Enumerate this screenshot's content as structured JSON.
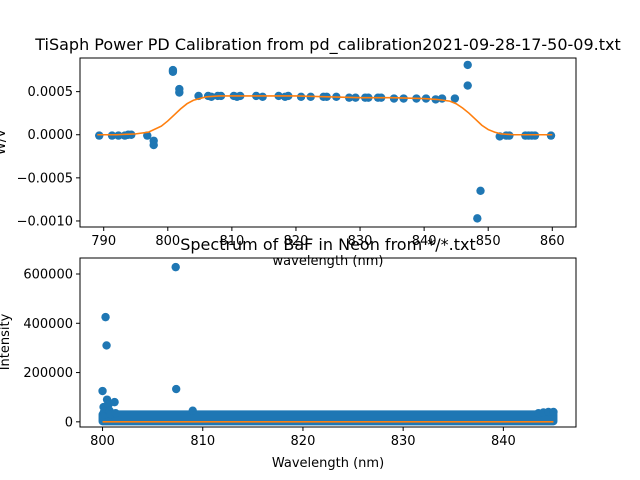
{
  "chart_data": [
    {
      "type": "scatter",
      "title": "TiSaph Power PD Calibration from pd_calibration2021-09-28-17-50-09.txt",
      "xlabel": "wavelength (nm)",
      "ylabel": "W/V",
      "xlim": [
        786.3,
        863.7
      ],
      "ylim": [
        -0.00107,
        0.00089
      ],
      "xticks": [
        790,
        800,
        810,
        820,
        830,
        840,
        850,
        860
      ],
      "yticks": [
        0.0005,
        0.0,
        -0.0005,
        -0.001
      ],
      "ytick_labels": [
        "0.0005",
        "0.0000",
        "−0.0005",
        "−0.0010"
      ],
      "series": [
        {
          "kind": "points",
          "color": "#1f77b4",
          "x": [
            789.3,
            791.3,
            792.3,
            793.3,
            793.8,
            794.3,
            796.8,
            797.8,
            797.8,
            800.8,
            800.8,
            801.8,
            801.8,
            804.8,
            806.3,
            806.8,
            807.8,
            808.3,
            810.3,
            810.8,
            811.3,
            813.8,
            814.8,
            817.3,
            818.3,
            818.8,
            820.8,
            822.3,
            824.3,
            824.8,
            826.3,
            828.3,
            829.3,
            830.8,
            831.3,
            832.8,
            833.3,
            835.3,
            836.8,
            838.8,
            840.3,
            841.8,
            842.8,
            844.8,
            846.8,
            846.8,
            848.3,
            848.8,
            851.8,
            852.8,
            853.3,
            855.8,
            856.3,
            856.8,
            857.3,
            859.8
          ],
          "y": [
            -1e-05,
            -1e-05,
            -1e-05,
            -1e-05,
            0.0,
            0.0,
            -1e-05,
            -7e-05,
            -0.00012,
            0.00075,
            0.00073,
            0.00049,
            0.00053,
            0.00045,
            0.00045,
            0.00044,
            0.00045,
            0.00045,
            0.00045,
            0.00044,
            0.00045,
            0.00045,
            0.00044,
            0.00045,
            0.00044,
            0.00045,
            0.00044,
            0.00044,
            0.00044,
            0.00044,
            0.00044,
            0.00043,
            0.00043,
            0.00043,
            0.00043,
            0.00043,
            0.00043,
            0.00042,
            0.00042,
            0.00042,
            0.00042,
            0.00041,
            0.00042,
            0.00042,
            0.00081,
            0.00057,
            -0.00097,
            -0.00065,
            -2e-05,
            -1e-05,
            -1e-05,
            -1e-05,
            -1e-05,
            -1e-05,
            -1e-05,
            -1e-05
          ]
        },
        {
          "kind": "line",
          "color": "#ff7f0e",
          "x": [
            789,
            792,
            795,
            797,
            799,
            800,
            801,
            802,
            803,
            804,
            805,
            806,
            808,
            810,
            815,
            820,
            825,
            830,
            835,
            840,
            842,
            844,
            845,
            846,
            847,
            848,
            849,
            850,
            851,
            852,
            854,
            857,
            860
          ],
          "y": [
            0.0,
            0.0,
            1e-05,
            3e-05,
            0.0001,
            0.00016,
            0.00023,
            0.0003,
            0.00036,
            0.0004,
            0.00042,
            0.00044,
            0.00045,
            0.00045,
            0.00045,
            0.00045,
            0.00044,
            0.00043,
            0.00043,
            0.00042,
            0.00041,
            0.00039,
            0.00036,
            0.00031,
            0.00025,
            0.00018,
            0.00011,
            6e-05,
            3e-05,
            1e-05,
            0.0,
            0.0,
            0.0
          ]
        }
      ]
    },
    {
      "type": "scatter",
      "title": "Spectrum of BaF in Neon from */*.txt",
      "xlabel": "Wavelength (nm)",
      "ylabel": "Intensity",
      "xlim": [
        797.75,
        847.25
      ],
      "ylim": [
        -21000,
        665000
      ],
      "xticks": [
        800,
        810,
        820,
        830,
        840
      ],
      "yticks": [
        0,
        200000,
        400000,
        600000
      ],
      "series": [
        {
          "kind": "band",
          "color": "#1f77b4",
          "x_range": [
            800.0,
            845.0
          ],
          "y_range": [
            2000,
            30000
          ]
        },
        {
          "kind": "points",
          "color": "#1f77b4",
          "x": [
            800.0,
            800.1,
            800.15,
            800.2,
            800.3,
            800.4,
            800.45,
            800.5,
            800.6,
            800.7,
            800.8,
            801.2,
            801.3,
            807.3,
            807.35,
            809.0,
            843.5,
            844.0,
            844.5,
            845.0
          ],
          "y": [
            125000,
            60000,
            40000,
            30000,
            425000,
            310000,
            90000,
            50000,
            70000,
            45000,
            30000,
            80000,
            35000,
            628000,
            133000,
            45000,
            35000,
            38000,
            40000,
            40000
          ]
        },
        {
          "kind": "line",
          "color": "#ff7f0e",
          "x": [
            800,
            845
          ],
          "y": [
            0,
            0
          ]
        }
      ]
    }
  ]
}
